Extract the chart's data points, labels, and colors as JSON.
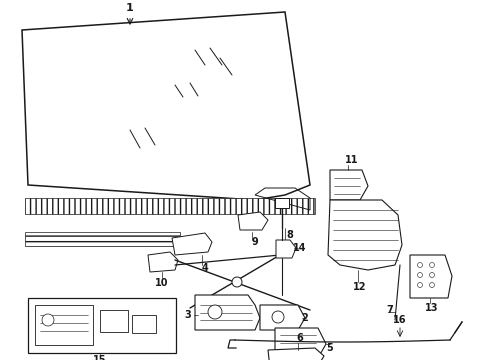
{
  "bg_color": "#ffffff",
  "line_color": "#1a1a1a",
  "lw": 0.8
}
